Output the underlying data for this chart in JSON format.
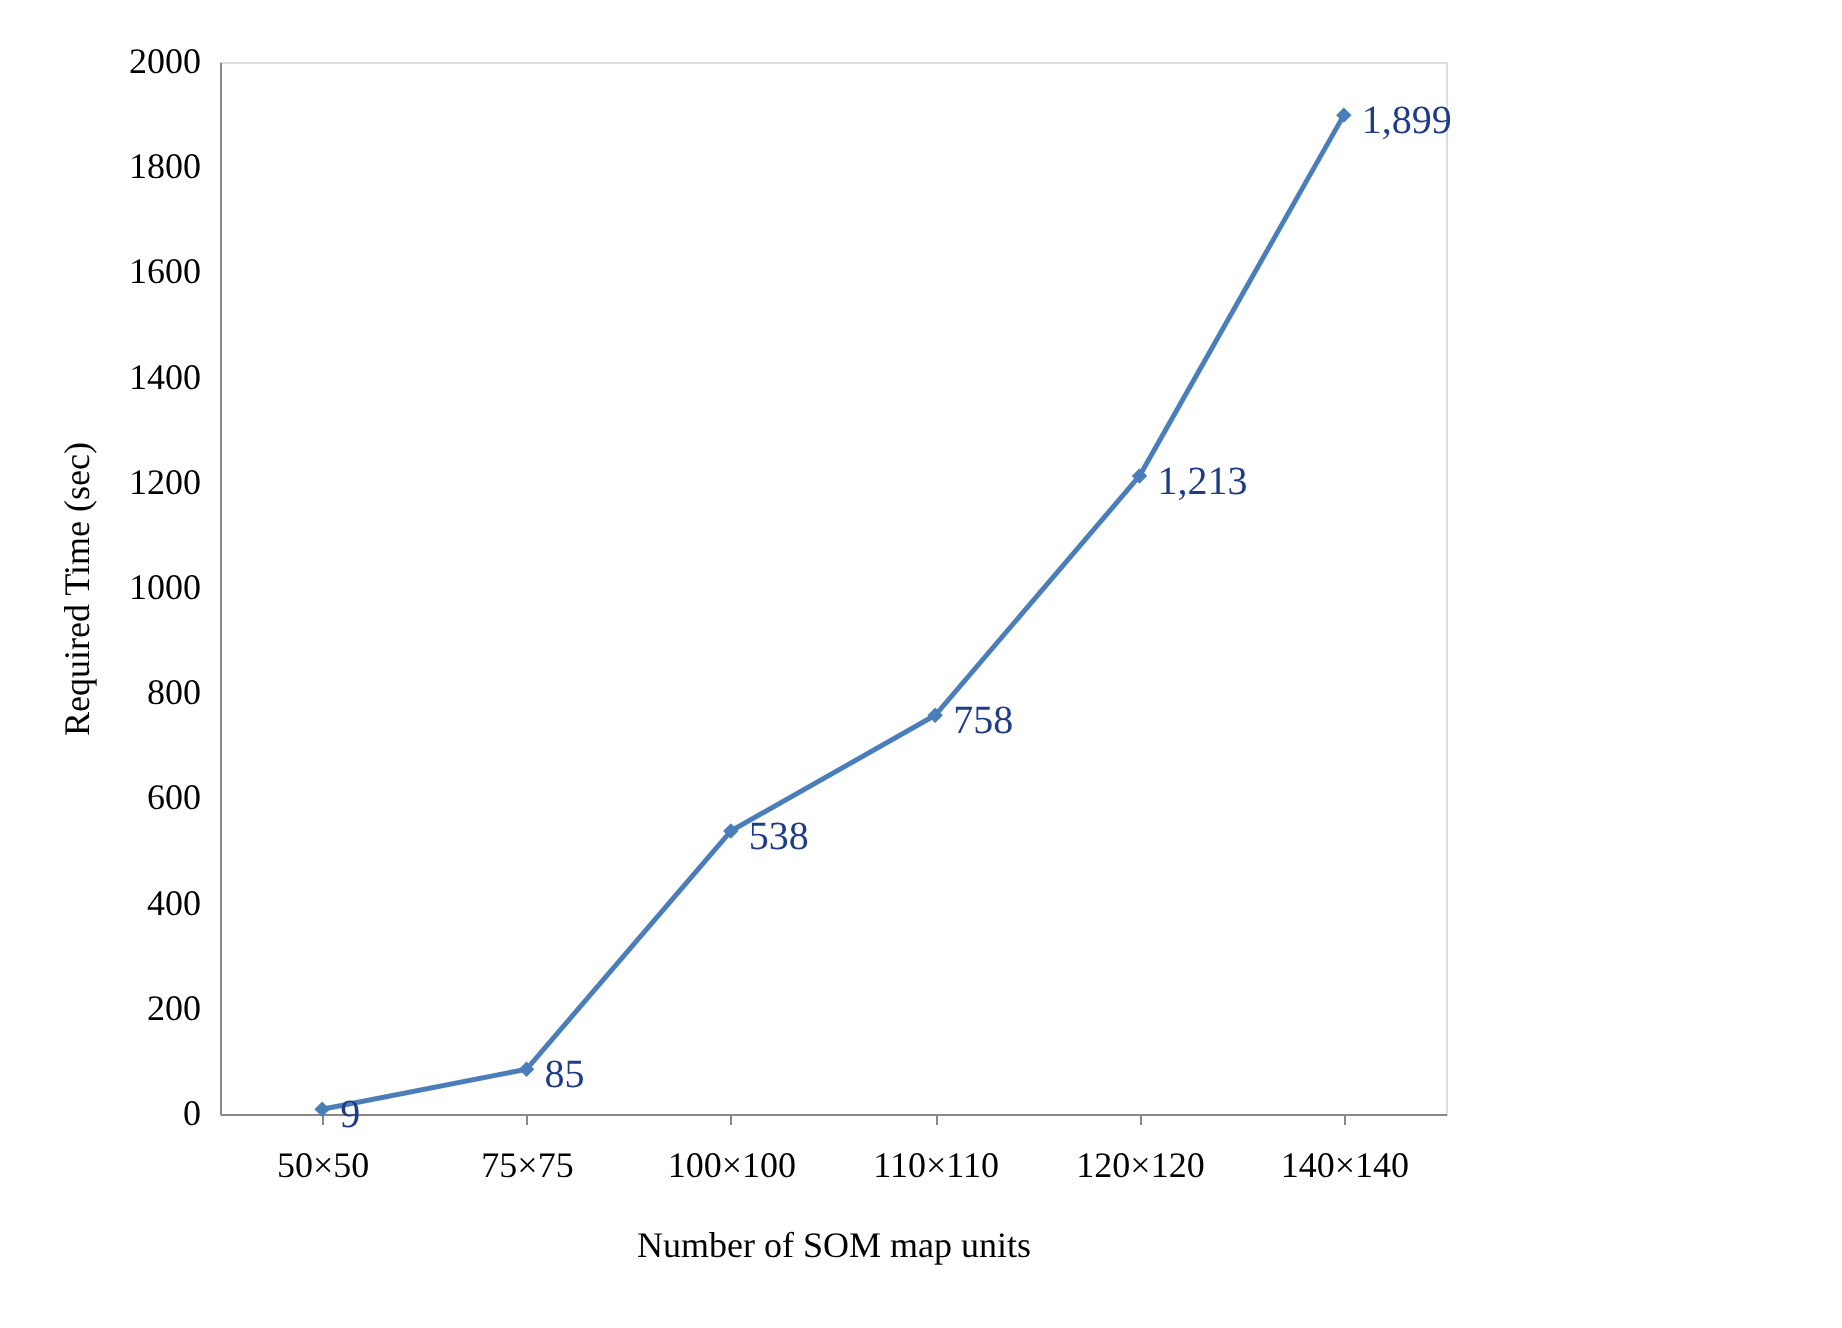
{
  "chart_data": {
    "type": "line",
    "xlabel": "Number of SOM map units",
    "ylabel": "Required Time (sec)",
    "categories": [
      "50×50",
      "75×75",
      "100×100",
      "110×110",
      "120×120",
      "140×140"
    ],
    "series": [
      {
        "color": "#4a7ebb",
        "values": [
          9,
          85,
          538,
          758,
          1213,
          1899
        ],
        "value_labels": [
          "9",
          "85",
          "538",
          "758",
          "1,213",
          "1,899"
        ]
      }
    ],
    "ylim": [
      0,
      2000
    ],
    "yticks": [
      0,
      200,
      400,
      600,
      800,
      1000,
      1200,
      1400,
      1600,
      1800,
      2000
    ],
    "grid": false,
    "marker": "diamond",
    "line_style": "solid"
  }
}
